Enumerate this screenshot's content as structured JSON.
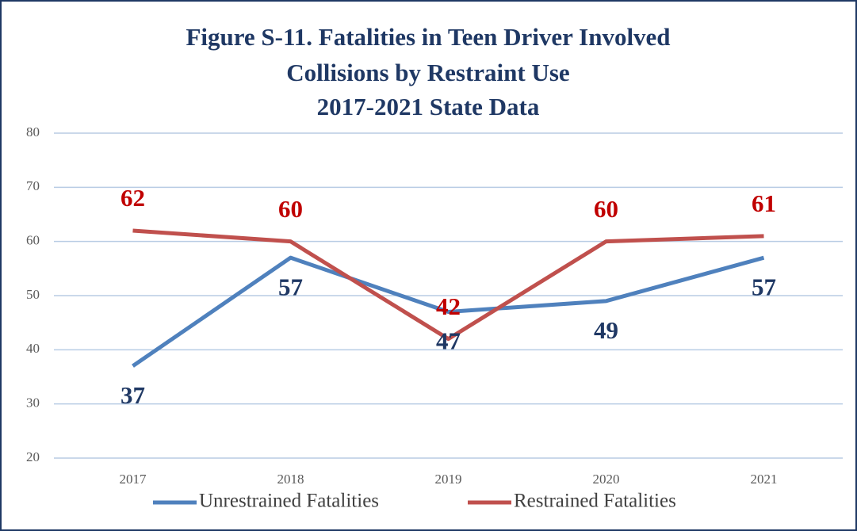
{
  "chart_data": {
    "type": "line",
    "title": [
      "Figure S-11. Fatalities in Teen Driver Involved",
      "Collisions by Restraint Use",
      "2017-2021 State Data"
    ],
    "categories": [
      "2017",
      "2018",
      "2019",
      "2020",
      "2021"
    ],
    "series": [
      {
        "name": "Unrestrained Fatalities",
        "color": "#4f81bd",
        "label_color": "#1f3864",
        "values": [
          37,
          57,
          47,
          49,
          57
        ]
      },
      {
        "name": "Restrained Fatalities",
        "color": "#c0504d",
        "label_color": "#c00000",
        "values": [
          62,
          60,
          42,
          60,
          61
        ]
      }
    ],
    "ylim": [
      20,
      80
    ],
    "yticks": [
      20,
      30,
      40,
      50,
      60,
      70,
      80
    ],
    "grid": true,
    "legend": "bottom"
  }
}
